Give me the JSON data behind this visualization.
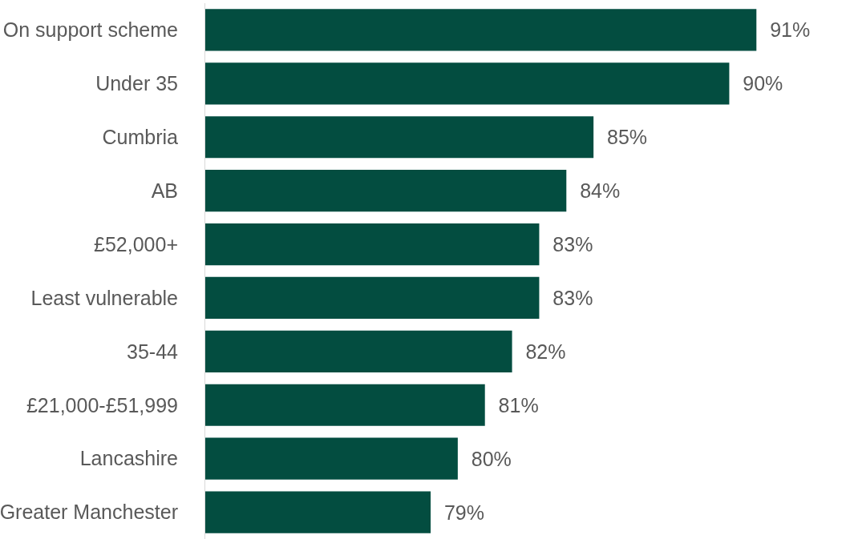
{
  "chart_data": {
    "type": "bar",
    "orientation": "horizontal",
    "categories": [
      "On support scheme",
      "Under 35",
      "Cumbria",
      "AB",
      "£52,000+",
      "Least vulnerable",
      "35-44",
      "£21,000-£51,999",
      "Lancashire",
      "Greater Manchester"
    ],
    "values": [
      91,
      90,
      85,
      84,
      83,
      83,
      82,
      81,
      80,
      79
    ],
    "color": "#034d40",
    "xlim": [
      70.7,
      94.3
    ],
    "data_labels": true,
    "value_labels": [
      "91%",
      "90%",
      "85%",
      "84%",
      "83%",
      "83%",
      "82%",
      "81%",
      "80%",
      "79%"
    ],
    "tick_labels": "y"
  }
}
